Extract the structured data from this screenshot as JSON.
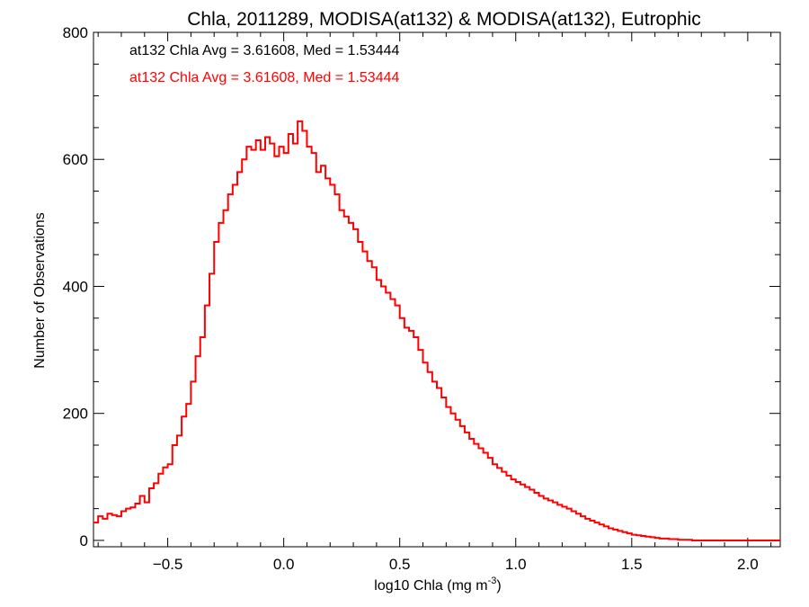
{
  "chart_data": {
    "type": "histogram",
    "title": "Chla, 2011289, MODISA(at132) & MODISA(at132), Eutrophic",
    "xlabel": "log10 Chla (mg m",
    "xlabel_sup": "-3",
    "xlabel_end": ")",
    "ylabel": "Number of Observations",
    "xlim": [
      -0.82,
      2.14
    ],
    "ylim": [
      -10,
      800
    ],
    "x_ticks": [
      -0.5,
      0.0,
      0.5,
      1.0,
      1.5,
      2.0
    ],
    "x_tick_labels": [
      "−0.5",
      "0.0",
      "0.5",
      "1.0",
      "1.5",
      "2.0"
    ],
    "y_ticks": [
      0,
      200,
      400,
      600,
      800
    ],
    "y_tick_labels": [
      "0",
      "200",
      "400",
      "600",
      "800"
    ],
    "annotations": [
      {
        "text": "at132 Chla Avg = 3.61608, Med = 1.53444",
        "color": "#000000"
      },
      {
        "text": "at132 Chla Avg = 3.61608, Med = 1.53444",
        "color": "#ff0000"
      }
    ],
    "series": [
      {
        "color": "#ff0000",
        "edges": [
          -0.82,
          -0.8,
          -0.78,
          -0.76,
          -0.74,
          -0.72,
          -0.7,
          -0.68,
          -0.66,
          -0.64,
          -0.62,
          -0.6,
          -0.58,
          -0.56,
          -0.54,
          -0.52,
          -0.5,
          -0.48,
          -0.46,
          -0.44,
          -0.42,
          -0.4,
          -0.38,
          -0.36,
          -0.34,
          -0.32,
          -0.3,
          -0.28,
          -0.26,
          -0.24,
          -0.22,
          -0.2,
          -0.18,
          -0.16,
          -0.14,
          -0.12,
          -0.1,
          -0.08,
          -0.06,
          -0.04,
          -0.02,
          0.0,
          0.02,
          0.04,
          0.06,
          0.08,
          0.1,
          0.12,
          0.14,
          0.16,
          0.18,
          0.2,
          0.22,
          0.24,
          0.26,
          0.28,
          0.3,
          0.32,
          0.34,
          0.36,
          0.38,
          0.4,
          0.42,
          0.44,
          0.46,
          0.48,
          0.5,
          0.52,
          0.54,
          0.56,
          0.58,
          0.6,
          0.62,
          0.64,
          0.66,
          0.68,
          0.7,
          0.72,
          0.74,
          0.76,
          0.78,
          0.8,
          0.82,
          0.84,
          0.86,
          0.88,
          0.9,
          0.92,
          0.94,
          0.96,
          0.98,
          1.0,
          1.02,
          1.04,
          1.06,
          1.08,
          1.1,
          1.12,
          1.14,
          1.16,
          1.18,
          1.2,
          1.22,
          1.24,
          1.26,
          1.28,
          1.3,
          1.32,
          1.34,
          1.36,
          1.38,
          1.4,
          1.42,
          1.44,
          1.46,
          1.48,
          1.5,
          1.52,
          1.54,
          1.56,
          1.58,
          1.6,
          1.62,
          1.64,
          1.66,
          1.68,
          1.7,
          1.72,
          1.74,
          1.76,
          1.78,
          1.8,
          1.82,
          1.84,
          1.86,
          1.88,
          1.9,
          1.92,
          1.94,
          1.96,
          1.98,
          2.0,
          2.02,
          2.04,
          2.06,
          2.08,
          2.1,
          2.12,
          2.14
        ],
        "counts": [
          28,
          38,
          34,
          42,
          40,
          38,
          46,
          50,
          52,
          58,
          70,
          60,
          82,
          90,
          105,
          115,
          120,
          150,
          165,
          195,
          215,
          250,
          290,
          320,
          370,
          420,
          470,
          500,
          520,
          545,
          560,
          580,
          600,
          620,
          615,
          630,
          615,
          635,
          625,
          605,
          620,
          610,
          640,
          625,
          660,
          645,
          620,
          610,
          580,
          590,
          570,
          560,
          545,
          520,
          510,
          500,
          490,
          470,
          455,
          440,
          430,
          410,
          400,
          390,
          380,
          370,
          350,
          335,
          330,
          320,
          300,
          280,
          265,
          250,
          240,
          225,
          210,
          200,
          190,
          180,
          170,
          160,
          152,
          145,
          138,
          130,
          120,
          114,
          108,
          102,
          96,
          92,
          88,
          84,
          80,
          75,
          70,
          66,
          63,
          60,
          56,
          53,
          50,
          46,
          42,
          38,
          34,
          31,
          28,
          25,
          22,
          19,
          17,
          15,
          13,
          11,
          9,
          8,
          7,
          6,
          5,
          4,
          3,
          3,
          2,
          2,
          1,
          1,
          1,
          0,
          0,
          0,
          0,
          0,
          0,
          0,
          0,
          0,
          0,
          0,
          0,
          0,
          0,
          0,
          0,
          0,
          0,
          0
        ]
      }
    ]
  }
}
